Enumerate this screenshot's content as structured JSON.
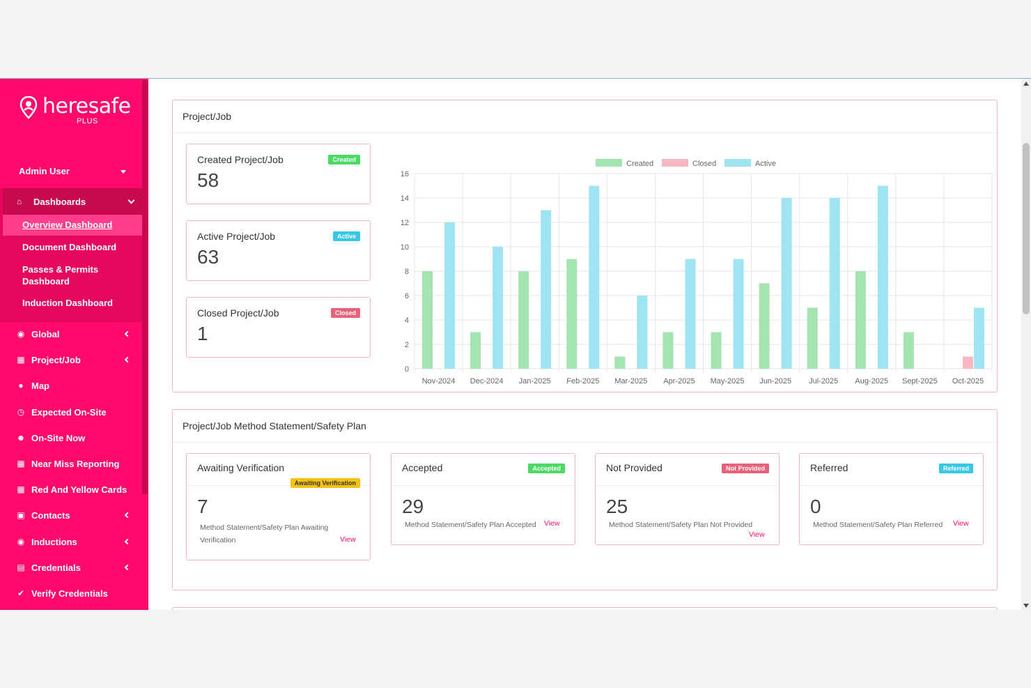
{
  "brand": {
    "name": "heresafe",
    "tier": "PLUS"
  },
  "user": {
    "name": "Admin User"
  },
  "sidebar": {
    "dashboards_label": "Dashboards",
    "dashboards_sub": [
      "Overview Dashboard",
      "Document Dashboard",
      "Passes & Permits Dashboard",
      "Induction Dashboard"
    ],
    "items": [
      {
        "label": "Global",
        "icon": "globe-icon",
        "glyph": "🌐"
      },
      {
        "label": "Project/Job",
        "icon": "calendar-icon",
        "glyph": "▦"
      },
      {
        "label": "Map",
        "icon": "map-marker-icon",
        "glyph": "●"
      },
      {
        "label": "Expected On-Site",
        "icon": "clock-icon",
        "glyph": "◷"
      },
      {
        "label": "On-Site Now",
        "icon": "users-icon",
        "glyph": "👥"
      },
      {
        "label": "Near Miss Reporting",
        "icon": "calendar-icon",
        "glyph": "▦"
      },
      {
        "label": "Red And Yellow Cards",
        "icon": "calendar-icon",
        "glyph": "▦"
      },
      {
        "label": "Contacts",
        "icon": "address-book-icon",
        "glyph": "▣"
      },
      {
        "label": "Inductions",
        "icon": "globe-icon",
        "glyph": "🌐"
      },
      {
        "label": "Credentials",
        "icon": "id-card-icon",
        "glyph": "▤"
      },
      {
        "label": "Verify Credentials",
        "icon": "check-icon",
        "glyph": "✔"
      }
    ]
  },
  "project_panel": {
    "title": "Project/Job",
    "cards": [
      {
        "label": "Created Project/Job",
        "badge": "Created",
        "value": "58"
      },
      {
        "label": "Active Project/Job",
        "badge": "Active",
        "value": "63"
      },
      {
        "label": "Closed Project/Job",
        "badge": "Closed",
        "value": "1"
      }
    ]
  },
  "ms_panel": {
    "title": "Project/Job Method Statement/Safety Plan",
    "cards": [
      {
        "label": "Awaiting Verification",
        "badge": "Awaiting Verification",
        "value": "7",
        "desc_line1": "Method Statement/Safety Plan Awaiting",
        "desc_line2": "Verification",
        "view": "View"
      },
      {
        "label": "Accepted",
        "badge": "Accepted",
        "value": "29",
        "desc_line1": "Method Statement/Safety Plan Accepted",
        "view": "View"
      },
      {
        "label": "Not Provided",
        "badge": "Not Provided",
        "value": "25",
        "desc_line1": "Method Statement/Safety Plan Not Provided",
        "view": "View"
      },
      {
        "label": "Referred",
        "badge": "Referred",
        "value": "0",
        "desc_line1": "Method Statement/Safety Plan Referred",
        "view": "View"
      }
    ]
  },
  "colors": {
    "brand": "#ff0a6c",
    "created": "#a3e4b0",
    "closed": "#f7b8c4",
    "active": "#9ee4f2"
  },
  "chart_data": {
    "type": "bar",
    "categories": [
      "Nov-2024",
      "Dec-2024",
      "Jan-2025",
      "Feb-2025",
      "Mar-2025",
      "Apr-2025",
      "May-2025",
      "Jun-2025",
      "Jul-2025",
      "Aug-2025",
      "Sept-2025",
      "Oct-2025"
    ],
    "series": [
      {
        "name": "Created",
        "values": [
          8,
          3,
          8,
          9,
          1,
          3,
          3,
          7,
          5,
          8,
          3,
          0
        ]
      },
      {
        "name": "Closed",
        "values": [
          0,
          0,
          0,
          0,
          0,
          0,
          0,
          0,
          0,
          0,
          0,
          1
        ]
      },
      {
        "name": "Active",
        "values": [
          12,
          10,
          13,
          15,
          6,
          9,
          9,
          14,
          14,
          15,
          0,
          5
        ]
      }
    ],
    "yticks": [
      "0",
      "2",
      "4",
      "6",
      "8",
      "10",
      "12",
      "14",
      "16"
    ],
    "ylim": [
      0,
      16
    ],
    "legend": "top",
    "grid": true
  }
}
